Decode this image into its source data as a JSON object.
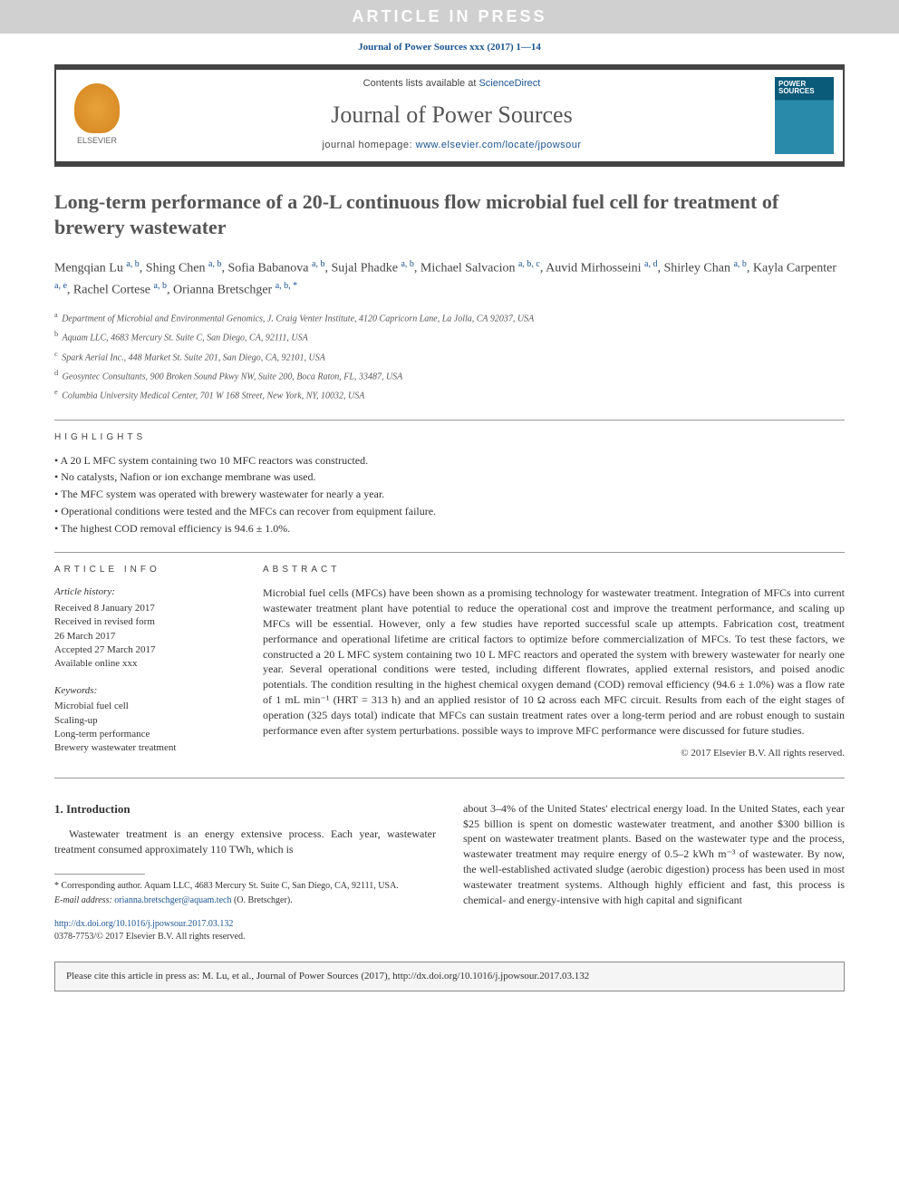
{
  "banner": "ARTICLE IN PRESS",
  "top_citation": "Journal of Power Sources xxx (2017) 1—14",
  "header": {
    "contents_prefix": "Contents lists available at ",
    "contents_link": "ScienceDirect",
    "journal_name": "Journal of Power Sources",
    "homepage_prefix": "journal homepage: ",
    "homepage_url": "www.elsevier.com/locate/jpowsour",
    "elsevier_label": "ELSEVIER",
    "cover_title": "POWER SOURCES"
  },
  "title": "Long-term performance of a 20-L continuous flow microbial fuel cell for treatment of brewery wastewater",
  "authors_html": "Mengqian Lu <sup>a, b</sup>, Shing Chen <sup>a, b</sup>, Sofia Babanova <sup>a, b</sup>, Sujal Phadke <sup>a, b</sup>, Michael Salvacion <sup>a, b, c</sup>, Auvid Mirhosseini <sup>a, d</sup>, Shirley Chan <sup>a, b</sup>, Kayla Carpenter <sup>a, e</sup>, Rachel Cortese <sup>a, b</sup>, Orianna Bretschger <sup>a, b, *</sup>",
  "affiliations": [
    {
      "sup": "a",
      "text": "Department of Microbial and Environmental Genomics, J. Craig Venter Institute, 4120 Capricorn Lane, La Jolla, CA 92037, USA"
    },
    {
      "sup": "b",
      "text": "Aquam LLC, 4683 Mercury St. Suite C, San Diego, CA, 92111, USA"
    },
    {
      "sup": "c",
      "text": "Spark Aerial Inc., 448 Market St. Suite 201, San Diego, CA, 92101, USA"
    },
    {
      "sup": "d",
      "text": "Geosyntec Consultants, 900 Broken Sound Pkwy NW, Suite 200, Boca Raton, FL, 33487, USA"
    },
    {
      "sup": "e",
      "text": "Columbia University Medical Center, 701 W 168 Street, New York, NY, 10032, USA"
    }
  ],
  "highlights_heading": "HIGHLIGHTS",
  "highlights": [
    "A 20 L MFC system containing two 10 MFC reactors was constructed.",
    "No catalysts, Nafion or ion exchange membrane was used.",
    "The MFC system was operated with brewery wastewater for nearly a year.",
    "Operational conditions were tested and the MFCs can recover from equipment failure.",
    "The highest COD removal efficiency is 94.6 ± 1.0%."
  ],
  "article_info_heading": "ARTICLE INFO",
  "history_heading": "Article history:",
  "history": [
    "Received 8 January 2017",
    "Received in revised form",
    "26 March 2017",
    "Accepted 27 March 2017",
    "Available online xxx"
  ],
  "keywords_heading": "Keywords:",
  "keywords": [
    "Microbial fuel cell",
    "Scaling-up",
    "Long-term performance",
    "Brewery wastewater treatment"
  ],
  "abstract_heading": "ABSTRACT",
  "abstract": "Microbial fuel cells (MFCs) have been shown as a promising technology for wastewater treatment. Integration of MFCs into current wastewater treatment plant have potential to reduce the operational cost and improve the treatment performance, and scaling up MFCs will be essential. However, only a few studies have reported successful scale up attempts. Fabrication cost, treatment performance and operational lifetime are critical factors to optimize before commercialization of MFCs. To test these factors, we constructed a 20 L MFC system containing two 10 L MFC reactors and operated the system with brewery wastewater for nearly one year. Several operational conditions were tested, including different flowrates, applied external resistors, and poised anodic potentials. The condition resulting in the highest chemical oxygen demand (COD) removal efficiency (94.6 ± 1.0%) was a flow rate of 1 mL min⁻¹ (HRT = 313 h) and an applied resistor of 10 Ω across each MFC circuit. Results from each of the eight stages of operation (325 days total) indicate that MFCs can sustain treatment rates over a long-term period and are robust enough to sustain performance even after system perturbations. possible ways to improve MFC performance were discussed for future studies.",
  "copyright": "© 2017 Elsevier B.V. All rights reserved.",
  "intro_heading": "1. Introduction",
  "intro_col1": "Wastewater treatment is an energy extensive process. Each year, wastewater treatment consumed approximately 110 TWh, which is",
  "intro_col2": "about 3–4% of the United States' electrical energy load. In the United States, each year $25 billion is spent on domestic wastewater treatment, and another $300 billion is spent on wastewater treatment plants. Based on the wastewater type and the process, wastewater treatment may require energy of 0.5–2 kWh m⁻³ of wastewater. By now, the well-established activated sludge (aerobic digestion) process has been used in most wastewater treatment systems. Although highly efficient and fast, this process is chemical- and energy-intensive with high capital and significant",
  "corresponding": "* Corresponding author. Aquam LLC, 4683 Mercury St. Suite C, San Diego, CA, 92111, USA.",
  "email_label": "E-mail address:",
  "email": "orianna.bretschger@aquam.tech",
  "email_suffix": "(O. Bretschger).",
  "doi": "http://dx.doi.org/10.1016/j.jpowsour.2017.03.132",
  "issn": "0378-7753/© 2017 Elsevier B.V. All rights reserved.",
  "cite_box": "Please cite this article in press as: M. Lu, et al., Journal of Power Sources (2017), http://dx.doi.org/10.1016/j.jpowsour.2017.03.132",
  "colors": {
    "link": "#1a5490",
    "text": "#333333",
    "muted": "#555555",
    "banner_bg": "#d0d0d0",
    "border": "#444444",
    "cover_top": "#0a5a7a",
    "cover_bottom": "#2a8aaa",
    "elsevier": "#e8a23a",
    "cite_bg": "#f5f5f5"
  }
}
